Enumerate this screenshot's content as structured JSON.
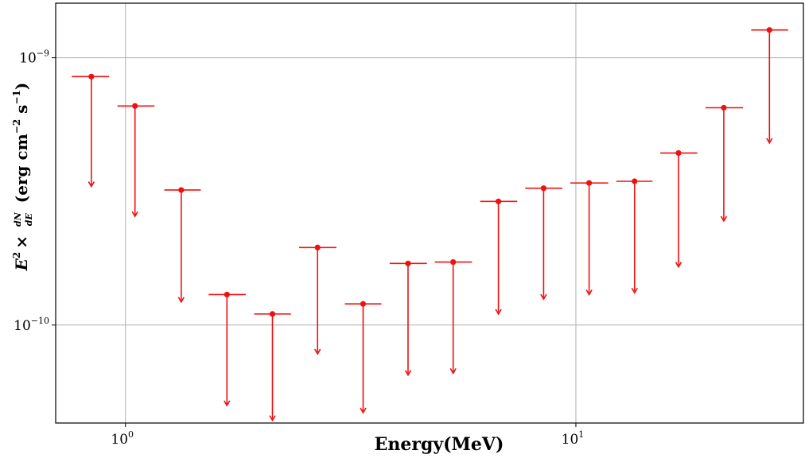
{
  "chart_data": {
    "type": "scatter",
    "subtype": "upper-limits",
    "xlabel": "Energy(MeV)",
    "ylabel": "E² × dN/dE (erg cm⁻² s⁻¹)",
    "ylabel_parts": {
      "e": "E",
      "sq": "2",
      "times": "×",
      "num": "dN",
      "den": "dE",
      "units_open": "(erg cm",
      "u_exp1": "−2",
      "u_mid": " s",
      "u_exp2": "−1",
      "units_close": ")"
    },
    "xscale": "log",
    "yscale": "log",
    "xlim": [
      0.7,
      32
    ],
    "ylim": [
      4.3e-11,
      1.6e-09
    ],
    "grid": true,
    "x_ticks": [
      {
        "value": 1,
        "base": "10",
        "exp": "0"
      },
      {
        "value": 10,
        "base": "10",
        "exp": "1"
      }
    ],
    "y_ticks": [
      {
        "value": 1e-10,
        "base": "10",
        "exp": "−10"
      },
      {
        "value": 1e-09,
        "base": "10",
        "exp": "−9"
      }
    ],
    "color": "#ee1111",
    "series": [
      {
        "points": [
          {
            "x": 0.84,
            "x_lo": 0.76,
            "x_hi": 0.92,
            "y": 8.5e-10,
            "y_lower": 3.3e-10
          },
          {
            "x": 1.05,
            "x_lo": 0.96,
            "x_hi": 1.16,
            "y": 6.6e-10,
            "y_lower": 2.55e-10
          },
          {
            "x": 1.33,
            "x_lo": 1.22,
            "x_hi": 1.47,
            "y": 3.2e-10,
            "y_lower": 1.22e-10
          },
          {
            "x": 1.68,
            "x_lo": 1.53,
            "x_hi": 1.85,
            "y": 1.3e-10,
            "y_lower": 5e-11
          },
          {
            "x": 2.12,
            "x_lo": 1.93,
            "x_hi": 2.33,
            "y": 1.1e-10,
            "y_lower": 4.4e-11
          },
          {
            "x": 2.67,
            "x_lo": 2.43,
            "x_hi": 2.94,
            "y": 1.95e-10,
            "y_lower": 7.8e-11
          },
          {
            "x": 3.37,
            "x_lo": 3.07,
            "x_hi": 3.7,
            "y": 1.2e-10,
            "y_lower": 4.7e-11
          },
          {
            "x": 4.24,
            "x_lo": 3.86,
            "x_hi": 4.67,
            "y": 1.7e-10,
            "y_lower": 6.5e-11
          },
          {
            "x": 5.34,
            "x_lo": 4.86,
            "x_hi": 5.88,
            "y": 1.72e-10,
            "y_lower": 6.6e-11
          },
          {
            "x": 6.73,
            "x_lo": 6.13,
            "x_hi": 7.41,
            "y": 2.9e-10,
            "y_lower": 1.1e-10
          },
          {
            "x": 8.48,
            "x_lo": 7.72,
            "x_hi": 9.33,
            "y": 3.25e-10,
            "y_lower": 1.25e-10
          },
          {
            "x": 10.7,
            "x_lo": 9.72,
            "x_hi": 11.8,
            "y": 3.4e-10,
            "y_lower": 1.3e-10
          },
          {
            "x": 13.5,
            "x_lo": 12.3,
            "x_hi": 14.8,
            "y": 3.45e-10,
            "y_lower": 1.32e-10
          },
          {
            "x": 16.9,
            "x_lo": 15.4,
            "x_hi": 18.6,
            "y": 4.4e-10,
            "y_lower": 1.65e-10
          },
          {
            "x": 21.3,
            "x_lo": 19.4,
            "x_hi": 23.5,
            "y": 6.5e-10,
            "y_lower": 2.45e-10
          },
          {
            "x": 26.9,
            "x_lo": 24.5,
            "x_hi": 29.6,
            "y": 1.27e-09,
            "y_lower": 4.8e-10
          }
        ]
      }
    ]
  }
}
